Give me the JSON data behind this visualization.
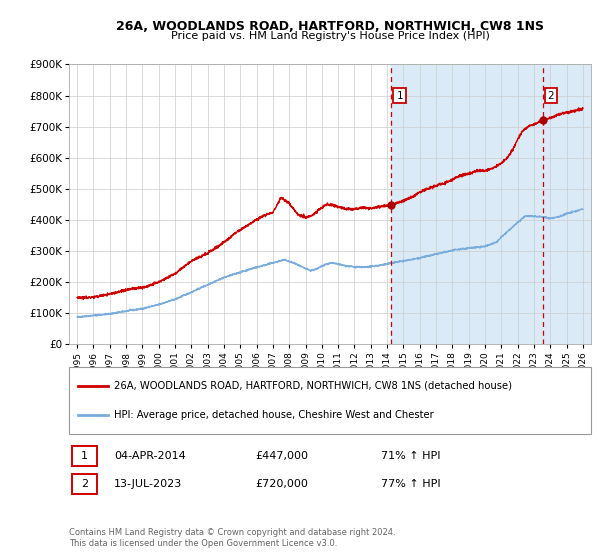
{
  "title_line1": "26A, WOODLANDS ROAD, HARTFORD, NORTHWICH, CW8 1NS",
  "title_line2": "Price paid vs. HM Land Registry's House Price Index (HPI)",
  "ylim": [
    0,
    900000
  ],
  "yticks": [
    0,
    100000,
    200000,
    300000,
    400000,
    500000,
    600000,
    700000,
    800000,
    900000
  ],
  "ytick_labels": [
    "£0",
    "£100K",
    "£200K",
    "£300K",
    "£400K",
    "£500K",
    "£600K",
    "£700K",
    "£800K",
    "£900K"
  ],
  "hpi_color": "#7aaddc",
  "price_color": "#cc0000",
  "marker_color": "#aa0000",
  "vline_color": "#cc0000",
  "shade_color": "#dbeaf7",
  "hatch_color": "#c8d8e8",
  "background_color": "#ffffff",
  "grid_color": "#cccccc",
  "annotation1": {
    "label": "1",
    "date_x": 2014.27,
    "price": 447000,
    "date_str": "04-APR-2014",
    "amount": "£447,000",
    "pct": "71% ↑ HPI"
  },
  "annotation2": {
    "label": "2",
    "date_x": 2023.54,
    "price": 720000,
    "date_str": "13-JUL-2023",
    "amount": "£720,000",
    "pct": "77% ↑ HPI"
  },
  "legend_line1": "26A, WOODLANDS ROAD, HARTFORD, NORTHWICH, CW8 1NS (detached house)",
  "legend_line2": "HPI: Average price, detached house, Cheshire West and Chester",
  "footnote": "Contains HM Land Registry data © Crown copyright and database right 2024.\nThis data is licensed under the Open Government Licence v3.0.",
  "xmin": 1994.5,
  "xmax": 2026.5,
  "hpi_key_points": [
    [
      1995.0,
      88000
    ],
    [
      1996.0,
      93000
    ],
    [
      1997.0,
      98000
    ],
    [
      1998.0,
      107000
    ],
    [
      1999.0,
      115000
    ],
    [
      2000.0,
      128000
    ],
    [
      2001.0,
      145000
    ],
    [
      2002.0,
      168000
    ],
    [
      2003.0,
      192000
    ],
    [
      2004.0,
      215000
    ],
    [
      2005.0,
      232000
    ],
    [
      2006.0,
      248000
    ],
    [
      2007.0,
      262000
    ],
    [
      2007.7,
      272000
    ],
    [
      2008.3,
      261000
    ],
    [
      2008.8,
      248000
    ],
    [
      2009.3,
      237000
    ],
    [
      2009.7,
      243000
    ],
    [
      2010.2,
      257000
    ],
    [
      2010.6,
      262000
    ],
    [
      2011.0,
      258000
    ],
    [
      2011.5,
      252000
    ],
    [
      2012.0,
      249000
    ],
    [
      2012.5,
      248000
    ],
    [
      2013.0,
      250000
    ],
    [
      2013.5,
      254000
    ],
    [
      2014.0,
      258000
    ],
    [
      2014.27,
      262000
    ],
    [
      2015.0,
      268000
    ],
    [
      2016.0,
      278000
    ],
    [
      2017.0,
      290000
    ],
    [
      2018.0,
      302000
    ],
    [
      2019.0,
      310000
    ],
    [
      2020.0,
      315000
    ],
    [
      2020.7,
      328000
    ],
    [
      2021.0,
      345000
    ],
    [
      2021.5,
      368000
    ],
    [
      2022.0,
      392000
    ],
    [
      2022.5,
      413000
    ],
    [
      2023.0,
      412000
    ],
    [
      2023.54,
      410000
    ],
    [
      2024.0,
      405000
    ],
    [
      2024.5,
      410000
    ],
    [
      2025.0,
      420000
    ],
    [
      2026.0,
      435000
    ]
  ],
  "price_key_points": [
    [
      1995.0,
      152000
    ],
    [
      1995.5,
      150000
    ],
    [
      1996.0,
      152000
    ],
    [
      1996.5,
      157000
    ],
    [
      1997.0,
      162000
    ],
    [
      1997.5,
      168000
    ],
    [
      1998.0,
      175000
    ],
    [
      1998.5,
      180000
    ],
    [
      1999.0,
      183000
    ],
    [
      1999.5,
      190000
    ],
    [
      2000.0,
      200000
    ],
    [
      2001.0,
      228000
    ],
    [
      2002.0,
      268000
    ],
    [
      2003.0,
      293000
    ],
    [
      2004.0,
      328000
    ],
    [
      2004.5,
      350000
    ],
    [
      2005.0,
      368000
    ],
    [
      2005.5,
      385000
    ],
    [
      2006.0,
      400000
    ],
    [
      2006.5,
      415000
    ],
    [
      2007.0,
      425000
    ],
    [
      2007.5,
      472000
    ],
    [
      2008.0,
      453000
    ],
    [
      2008.5,
      420000
    ],
    [
      2009.0,
      408000
    ],
    [
      2009.4,
      413000
    ],
    [
      2009.7,
      428000
    ],
    [
      2010.0,
      440000
    ],
    [
      2010.3,
      450000
    ],
    [
      2010.7,
      448000
    ],
    [
      2011.0,
      443000
    ],
    [
      2011.5,
      435000
    ],
    [
      2012.0,
      435000
    ],
    [
      2012.5,
      440000
    ],
    [
      2013.0,
      438000
    ],
    [
      2013.3,
      440000
    ],
    [
      2013.6,
      443000
    ],
    [
      2014.0,
      446000
    ],
    [
      2014.27,
      447000
    ],
    [
      2014.5,
      452000
    ],
    [
      2015.0,
      462000
    ],
    [
      2015.3,
      468000
    ],
    [
      2015.7,
      478000
    ],
    [
      2016.0,
      490000
    ],
    [
      2016.5,
      500000
    ],
    [
      2017.0,
      510000
    ],
    [
      2017.5,
      518000
    ],
    [
      2018.0,
      530000
    ],
    [
      2018.5,
      543000
    ],
    [
      2019.0,
      548000
    ],
    [
      2019.5,
      558000
    ],
    [
      2020.0,
      558000
    ],
    [
      2020.5,
      567000
    ],
    [
      2021.0,
      582000
    ],
    [
      2021.3,
      595000
    ],
    [
      2021.7,
      625000
    ],
    [
      2022.0,
      660000
    ],
    [
      2022.3,
      685000
    ],
    [
      2022.6,
      700000
    ],
    [
      2022.9,
      706000
    ],
    [
      2023.0,
      708000
    ],
    [
      2023.3,
      715000
    ],
    [
      2023.54,
      720000
    ],
    [
      2023.8,
      725000
    ],
    [
      2024.0,
      728000
    ],
    [
      2024.3,
      735000
    ],
    [
      2024.7,
      742000
    ],
    [
      2025.0,
      745000
    ],
    [
      2025.5,
      750000
    ],
    [
      2026.0,
      758000
    ]
  ]
}
